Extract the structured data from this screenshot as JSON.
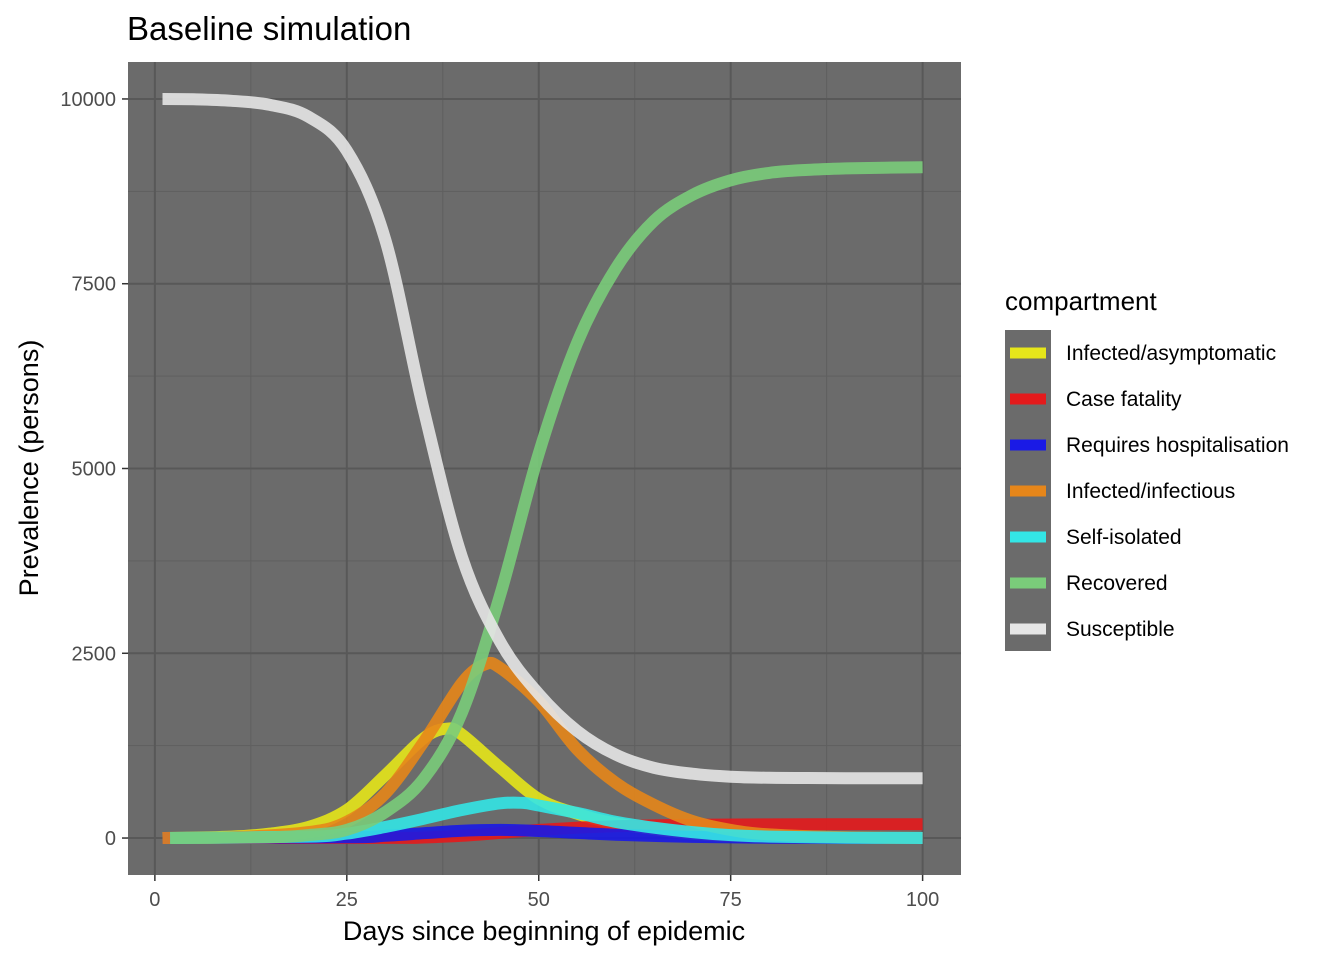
{
  "chart_data": {
    "type": "line",
    "title": "Baseline simulation",
    "xlabel": "Days since beginning of epidemic",
    "ylabel": "Prevalence (persons)",
    "xlim": [
      -3.5,
      105
    ],
    "ylim": [
      -500,
      10500
    ],
    "x_ticks": [
      0,
      25,
      50,
      75,
      100
    ],
    "y_ticks": [
      0,
      2500,
      5000,
      7500,
      10000
    ],
    "panel_background": "#6b6b6b",
    "grid": true,
    "legend": {
      "title": "compartment",
      "placement": "right"
    },
    "series": [
      {
        "name": "Infected/asymptomatic",
        "color": "#e6e61a",
        "x": [
          1,
          10,
          15,
          20,
          25,
          30,
          35,
          38,
          40,
          45,
          50,
          55,
          60,
          70,
          80,
          90,
          100
        ],
        "y": [
          0,
          20,
          60,
          150,
          380,
          850,
          1350,
          1480,
          1400,
          950,
          530,
          330,
          200,
          60,
          15,
          3,
          0
        ]
      },
      {
        "name": "Case fatality",
        "color": "#e41a1c",
        "x": [
          1,
          30,
          35,
          40,
          45,
          50,
          55,
          60,
          70,
          80,
          90,
          100
        ],
        "y": [
          0,
          2,
          8,
          30,
          70,
          110,
          140,
          160,
          180,
          185,
          186,
          186
        ]
      },
      {
        "name": "Requires hospitalisation",
        "color": "#1a1ae6",
        "x": [
          1,
          25,
          30,
          35,
          40,
          45,
          50,
          55,
          60,
          70,
          80,
          90,
          100
        ],
        "y": [
          0,
          10,
          30,
          65,
          100,
          110,
          95,
          70,
          45,
          15,
          5,
          1,
          0
        ]
      },
      {
        "name": "Infected/infectious",
        "color": "#e6861a",
        "x": [
          1,
          10,
          20,
          25,
          30,
          35,
          40,
          43,
          45,
          50,
          55,
          60,
          65,
          70,
          75,
          80,
          90,
          100
        ],
        "y": [
          0,
          10,
          80,
          220,
          600,
          1300,
          2100,
          2350,
          2300,
          1850,
          1200,
          750,
          450,
          230,
          110,
          50,
          10,
          1
        ]
      },
      {
        "name": "Self-isolated",
        "color": "#33e6e6",
        "x": [
          2,
          20,
          25,
          30,
          35,
          40,
          45,
          48,
          50,
          55,
          60,
          65,
          70,
          75,
          80,
          90,
          100
        ],
        "y": [
          0,
          20,
          60,
          150,
          260,
          380,
          470,
          475,
          440,
          340,
          220,
          140,
          80,
          40,
          20,
          5,
          1
        ]
      },
      {
        "name": "Recovered",
        "color": "#7acc7a",
        "x": [
          2,
          15,
          20,
          25,
          30,
          35,
          40,
          45,
          50,
          55,
          60,
          65,
          70,
          75,
          80,
          85,
          90,
          95,
          100
        ],
        "y": [
          0,
          10,
          40,
          110,
          350,
          800,
          1700,
          3300,
          5200,
          6700,
          7700,
          8350,
          8700,
          8900,
          9000,
          9040,
          9060,
          9070,
          9075
        ]
      },
      {
        "name": "Susceptible",
        "color": "#e6e6e6",
        "x": [
          1,
          5,
          10,
          15,
          20,
          25,
          30,
          35,
          40,
          45,
          50,
          55,
          60,
          65,
          70,
          75,
          80,
          85,
          90,
          95,
          100
        ],
        "y": [
          10000,
          9995,
          9975,
          9920,
          9760,
          9300,
          8100,
          5800,
          3800,
          2650,
          1950,
          1450,
          1130,
          950,
          870,
          830,
          815,
          812,
          810,
          810,
          810
        ]
      }
    ]
  }
}
